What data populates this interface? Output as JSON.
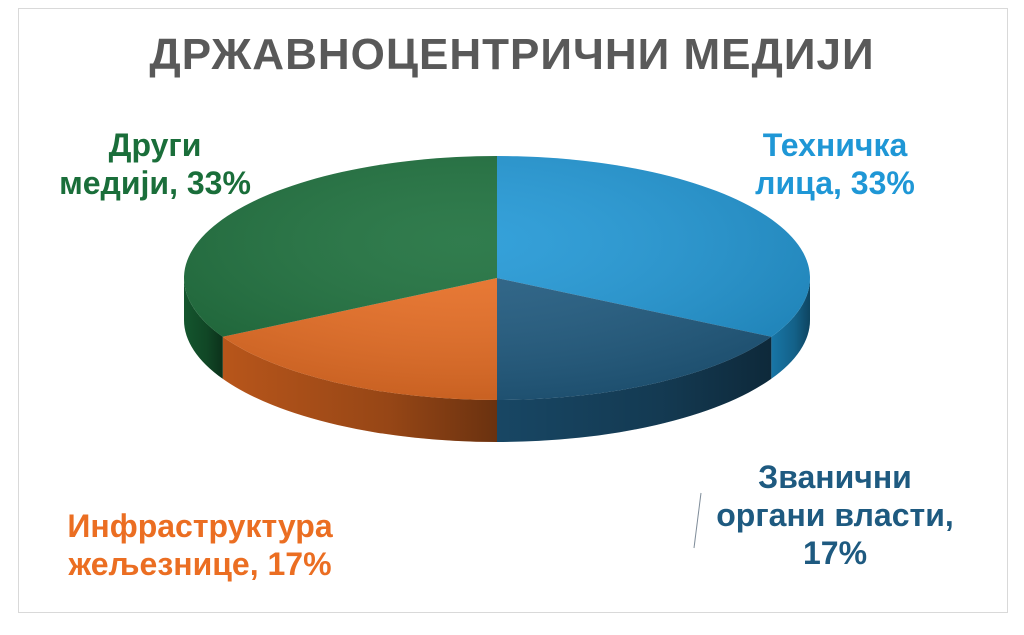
{
  "chart_data": {
    "type": "pie",
    "title": "ДРЖАВНОЦЕНТРИЧНИ МЕДИЈИ",
    "slices": [
      {
        "name": "Техничка лица",
        "value": 33,
        "label_lines": [
          "Техничка",
          "лица, 33%"
        ],
        "color": "#1f97d6"
      },
      {
        "name": "Званични органи власти",
        "value": 17,
        "label_lines": [
          "Званични",
          "органи власти,",
          "17%"
        ],
        "color": "#1e5a80"
      },
      {
        "name": "Инфраструктура железнице",
        "value": 17,
        "label_lines": [
          "Инфраструктура",
          "жељезнице, 17%"
        ],
        "color": "#eb6e22"
      },
      {
        "name": "Други медији",
        "value": 33,
        "label_lines": [
          "Други",
          "медији, 33%"
        ],
        "color": "#1a6e3a"
      }
    ],
    "title_color": "#595959",
    "style": "3d-pie"
  }
}
